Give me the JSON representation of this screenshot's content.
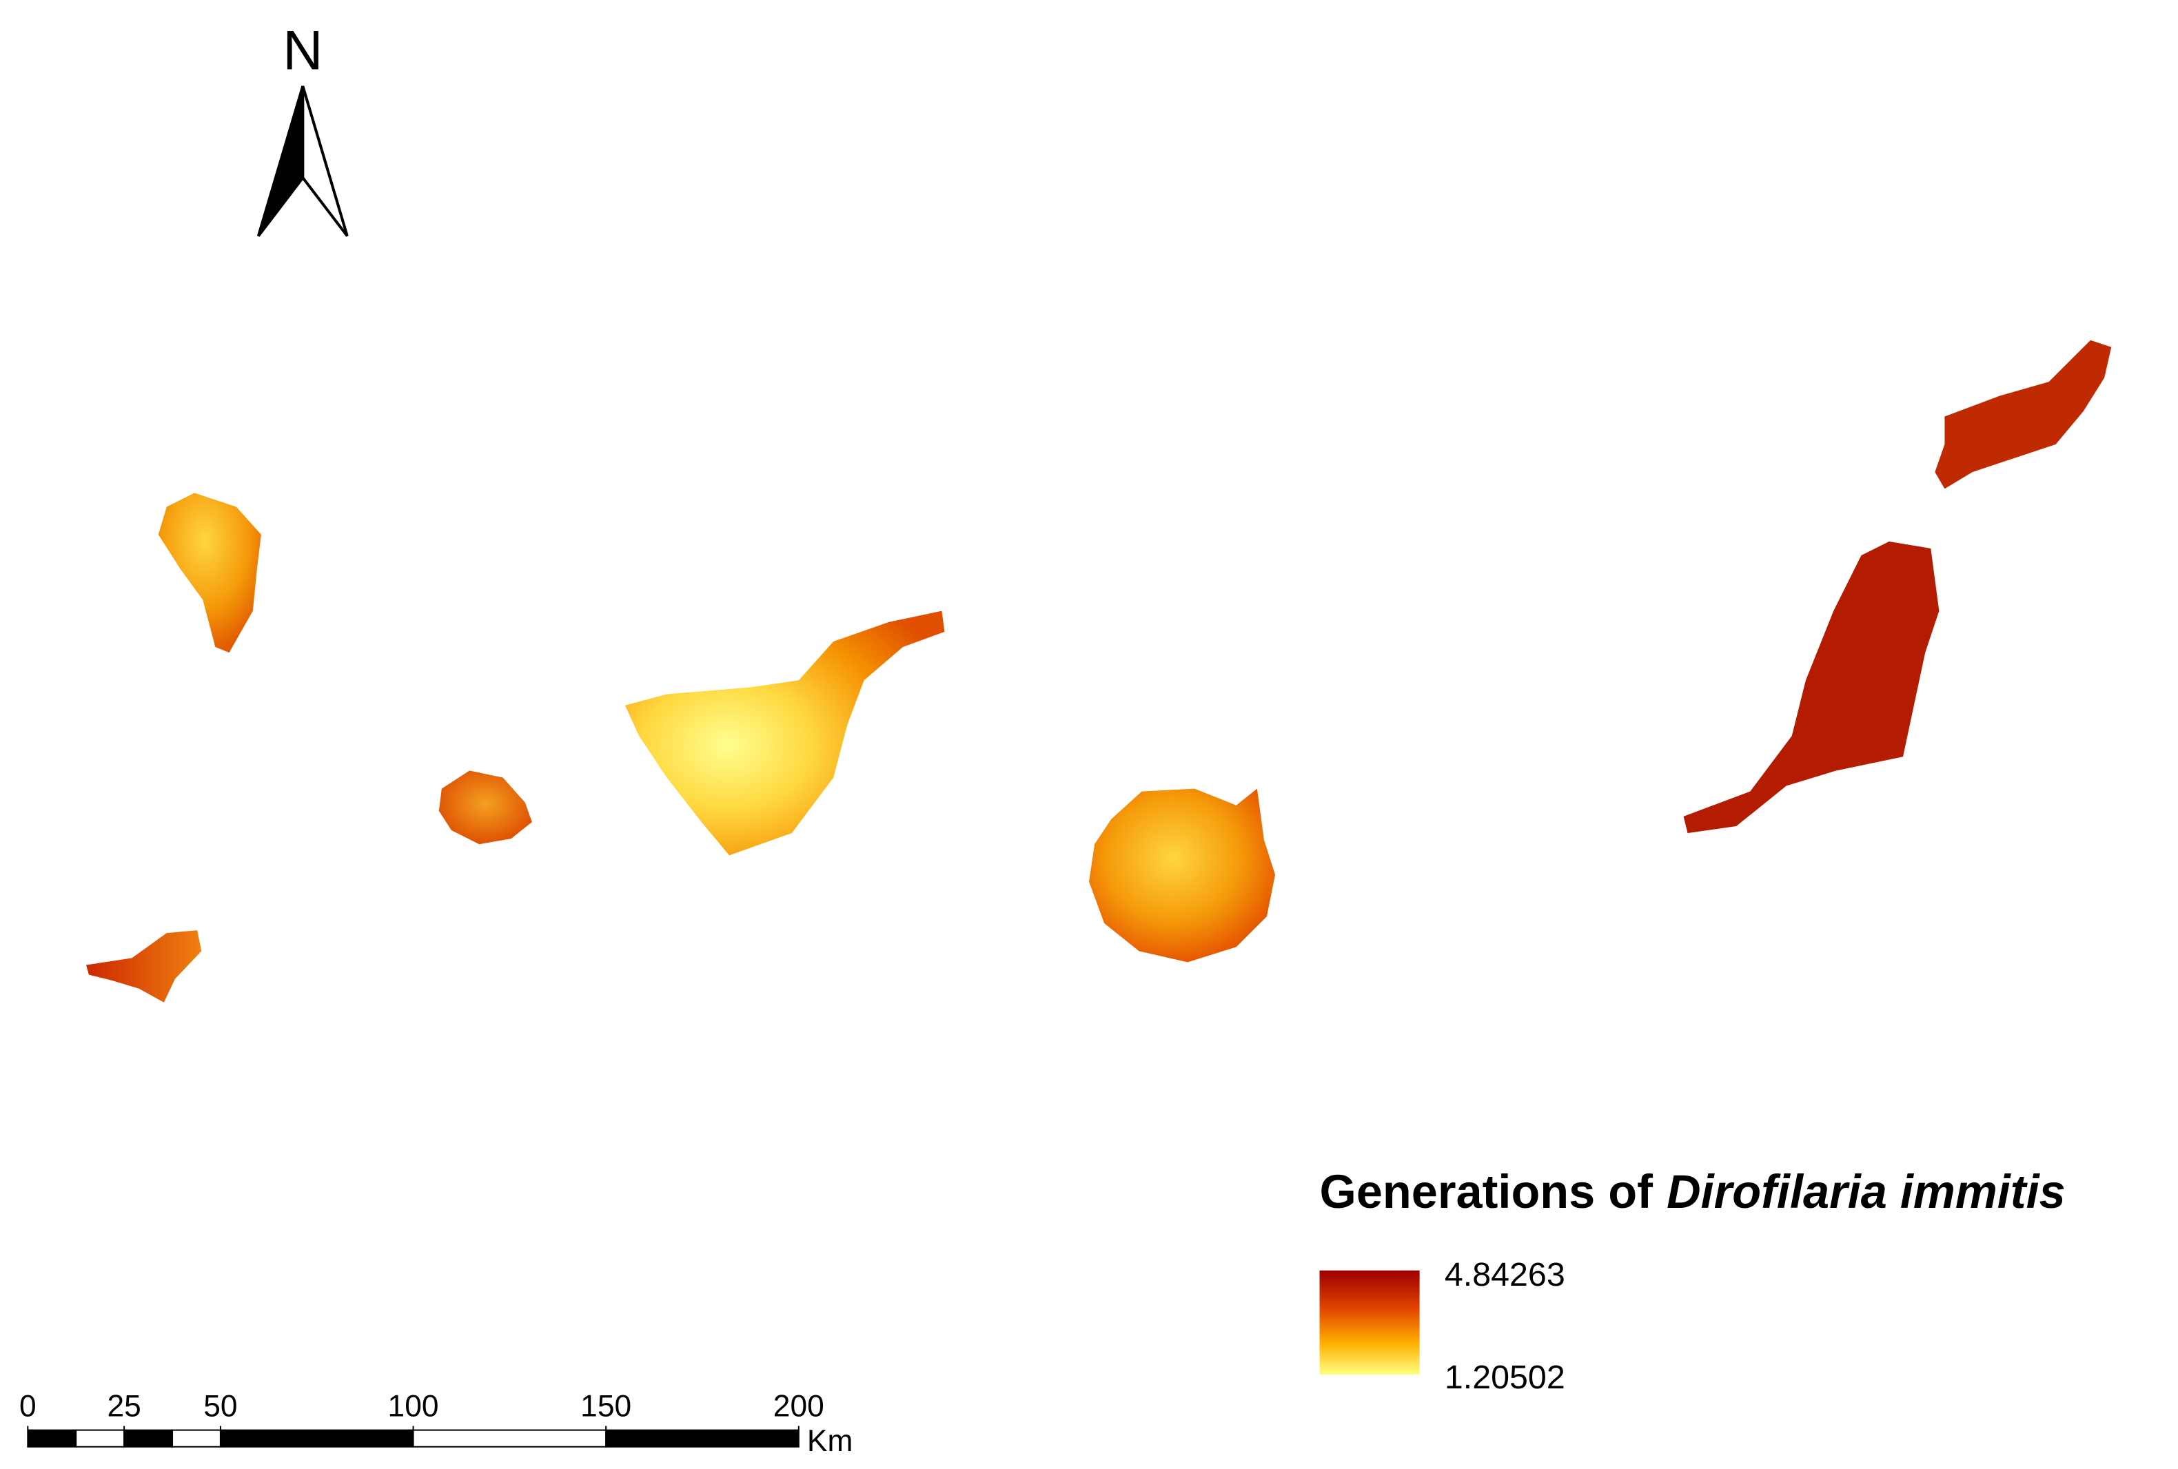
{
  "north_arrow": {
    "label": "N"
  },
  "legend": {
    "title": "Generations of",
    "title_italic": "Dirofilaria immitis",
    "max_label": "4.84263",
    "min_label": "1.20502"
  },
  "scale_bar": {
    "ticks": [
      0,
      25,
      50,
      100,
      150,
      200
    ],
    "unit": "Km"
  }
}
